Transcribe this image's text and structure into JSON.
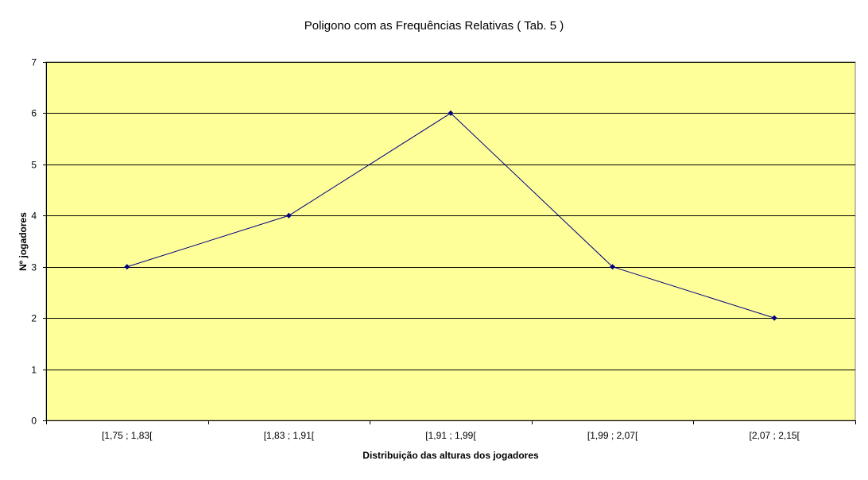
{
  "chart_data": {
    "type": "line",
    "title": "Poligono com as Frequências Relativas ( Tab. 5 )",
    "xlabel": "Distribuição das alturas dos jogadores",
    "ylabel": "Nº jogadores",
    "categories": [
      "[1,75 ; 1,83[",
      "[1,83 ; 1,91[",
      "[1,91 ; 1,99[",
      "[1,99 ; 2,07[",
      "[2,07 ; 2,15["
    ],
    "series": [
      {
        "values": [
          3,
          4,
          6,
          3,
          2
        ],
        "color": "#000080"
      }
    ],
    "ylim": [
      0,
      7
    ],
    "yticks": [
      0,
      1,
      2,
      3,
      4,
      5,
      6,
      7
    ],
    "grid": true,
    "legend": "none",
    "plot_background": "#FFFF99",
    "gridline_color": "#000000"
  }
}
